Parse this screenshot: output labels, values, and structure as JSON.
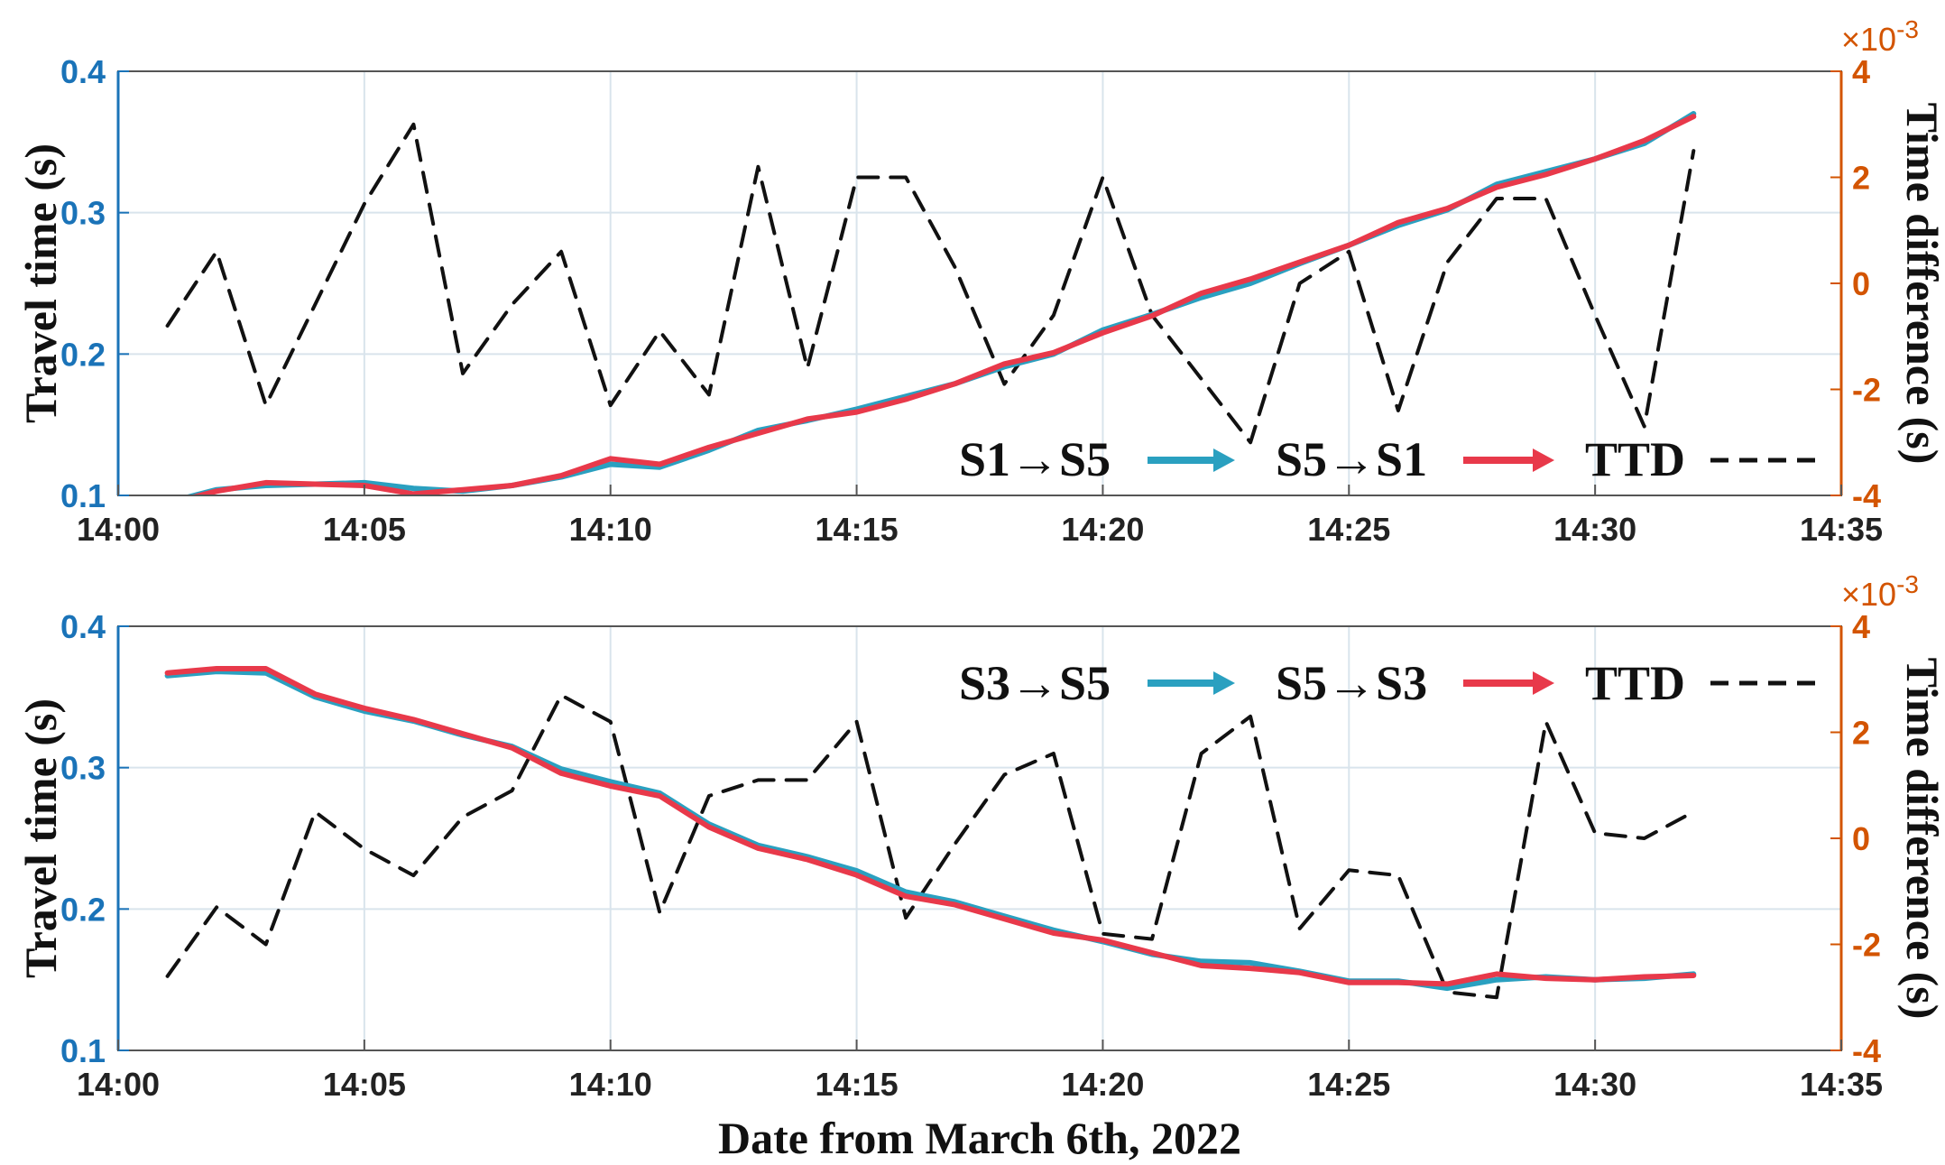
{
  "colors": {
    "left_axis": "#1a73b8",
    "right_axis": "#d35400",
    "series_forward": "#2aa0c0",
    "series_backward": "#e8394a",
    "ttd": "#111111",
    "grid": "#d9e4ec"
  },
  "xlabel": "Date from March 6th, 2022",
  "chart_data": [
    {
      "type": "line",
      "x_ticks": [
        "14:00",
        "14:05",
        "14:10",
        "14:15",
        "14:20",
        "14:25",
        "14:30",
        "14:35"
      ],
      "xlim": [
        0,
        35
      ],
      "ylabel": "Travel time (s)",
      "ylim": [
        0.1,
        0.4
      ],
      "y_ticks": [
        "0.1",
        "0.2",
        "0.3",
        "0.4"
      ],
      "y2label": "Time difference (s)",
      "y2lim": [
        -4,
        4
      ],
      "y2_ticks": [
        "-4",
        "-2",
        "0",
        "2",
        "4"
      ],
      "y2_exponent_base": "×10",
      "y2_exponent_power": "-3",
      "grid": true,
      "legend_position": "bottom-right",
      "x": [
        1,
        2,
        3,
        4,
        5,
        6,
        7,
        8,
        9,
        10,
        11,
        12,
        13,
        14,
        15,
        16,
        17,
        18,
        19,
        20,
        21,
        22,
        23,
        24,
        25,
        26,
        27,
        28,
        29,
        30,
        31,
        32
      ],
      "series": [
        {
          "name": "S1→S5",
          "axis": "left",
          "style": "arrow",
          "values": [
            0.095,
            0.104,
            0.107,
            0.108,
            0.109,
            0.105,
            0.103,
            0.107,
            0.113,
            0.122,
            0.12,
            0.132,
            0.146,
            0.153,
            0.161,
            0.17,
            0.179,
            0.191,
            0.2,
            0.217,
            0.228,
            0.24,
            0.25,
            0.264,
            0.277,
            0.291,
            0.302,
            0.32,
            0.329,
            0.338,
            0.349,
            0.37
          ]
        },
        {
          "name": "S5→S1",
          "axis": "left",
          "style": "arrow",
          "values": [
            0.094,
            0.103,
            0.109,
            0.108,
            0.107,
            0.101,
            0.104,
            0.107,
            0.114,
            0.126,
            0.122,
            0.134,
            0.144,
            0.154,
            0.159,
            0.168,
            0.179,
            0.193,
            0.201,
            0.215,
            0.227,
            0.243,
            0.253,
            0.265,
            0.277,
            0.293,
            0.303,
            0.318,
            0.327,
            0.338,
            0.351,
            0.368
          ]
        },
        {
          "name": "TTD",
          "axis": "right",
          "style": "dashed",
          "values": [
            -0.8,
            0.6,
            -2.3,
            -0.4,
            1.5,
            3.0,
            -1.7,
            -0.4,
            0.6,
            -2.3,
            -0.9,
            -2.1,
            2.2,
            -1.6,
            2.0,
            2.0,
            0.3,
            -1.9,
            -0.6,
            2.0,
            -0.6,
            -1.8,
            -3.0,
            0.0,
            0.6,
            -2.4,
            0.4,
            1.6,
            1.6,
            -0.6,
            -2.7,
            2.5
          ]
        }
      ]
    },
    {
      "type": "line",
      "x_ticks": [
        "14:00",
        "14:05",
        "14:10",
        "14:15",
        "14:20",
        "14:25",
        "14:30",
        "14:35"
      ],
      "xlim": [
        0,
        35
      ],
      "ylabel": "Travel time (s)",
      "ylim": [
        0.1,
        0.4
      ],
      "y_ticks": [
        "0.1",
        "0.2",
        "0.3",
        "0.4"
      ],
      "y2label": "Time difference (s)",
      "y2lim": [
        -4,
        4
      ],
      "y2_ticks": [
        "-4",
        "-2",
        "0",
        "2",
        "4"
      ],
      "y2_exponent_base": "×10",
      "y2_exponent_power": "-3",
      "grid": true,
      "legend_position": "top-right",
      "x": [
        1,
        2,
        3,
        4,
        5,
        6,
        7,
        8,
        9,
        10,
        11,
        12,
        13,
        14,
        15,
        16,
        17,
        18,
        19,
        20,
        21,
        22,
        23,
        24,
        25,
        26,
        27,
        28,
        29,
        30,
        31,
        32
      ],
      "series": [
        {
          "name": "S3→S5",
          "axis": "left",
          "style": "arrow",
          "values": [
            0.365,
            0.368,
            0.367,
            0.35,
            0.34,
            0.333,
            0.323,
            0.315,
            0.299,
            0.29,
            0.282,
            0.26,
            0.245,
            0.237,
            0.227,
            0.212,
            0.205,
            0.195,
            0.185,
            0.177,
            0.168,
            0.163,
            0.162,
            0.156,
            0.149,
            0.149,
            0.144,
            0.15,
            0.152,
            0.15,
            0.151,
            0.154
          ]
        },
        {
          "name": "S5→S3",
          "axis": "left",
          "style": "arrow",
          "values": [
            0.367,
            0.37,
            0.37,
            0.352,
            0.342,
            0.334,
            0.324,
            0.314,
            0.296,
            0.287,
            0.28,
            0.258,
            0.243,
            0.235,
            0.224,
            0.209,
            0.203,
            0.193,
            0.183,
            0.178,
            0.169,
            0.16,
            0.158,
            0.155,
            0.148,
            0.148,
            0.147,
            0.154,
            0.151,
            0.15,
            0.152,
            0.153
          ]
        },
        {
          "name": "TTD",
          "axis": "right",
          "style": "dashed",
          "values": [
            -2.6,
            -1.3,
            -2.0,
            0.5,
            -0.2,
            -0.7,
            0.4,
            0.9,
            2.7,
            2.2,
            -1.4,
            0.8,
            1.1,
            1.1,
            2.2,
            -1.5,
            -0.1,
            1.2,
            1.6,
            -1.8,
            -1.9,
            1.6,
            2.3,
            -1.7,
            -0.6,
            -0.7,
            -2.9,
            -3.0,
            2.2,
            0.1,
            0.0,
            0.5
          ]
        }
      ]
    }
  ]
}
